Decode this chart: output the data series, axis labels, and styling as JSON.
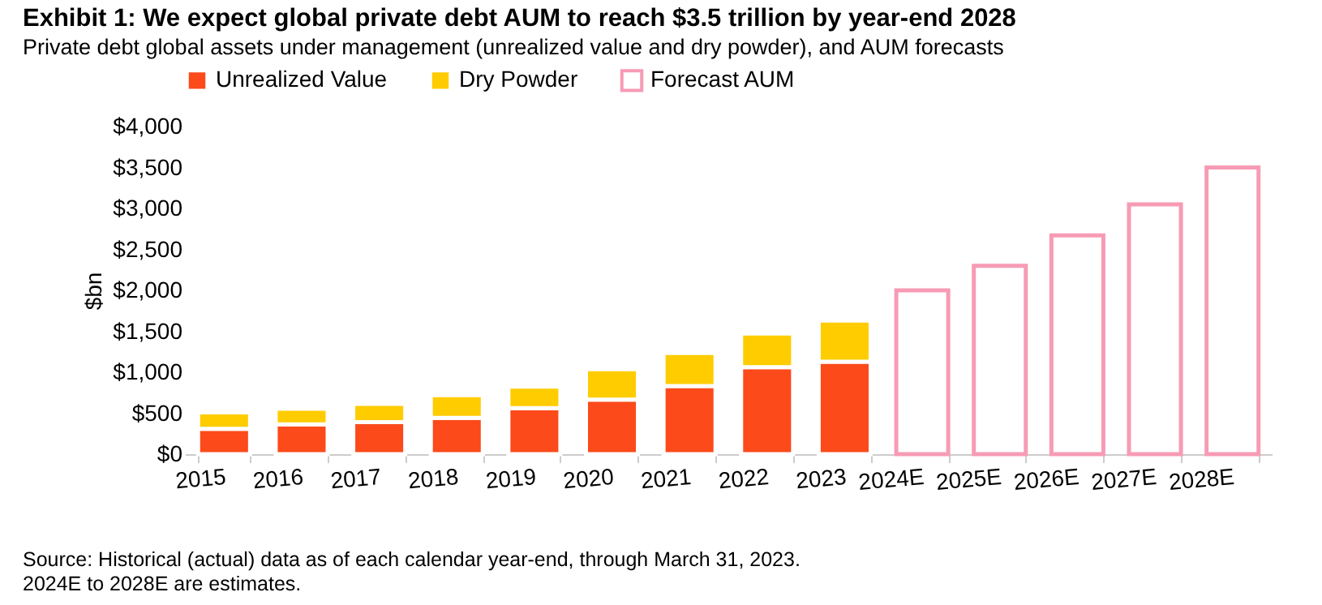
{
  "chart_data": {
    "type": "bar",
    "title": "Exhibit 1: We expect global private debt AUM to reach $3.5 trillion by year-end 2028",
    "subtitle": "Private debt global assets under management (unrealized value and dry powder), and AUM forecasts",
    "ylabel": "$bn",
    "categories": [
      "2015",
      "2016",
      "2017",
      "2018",
      "2019",
      "2020",
      "2021",
      "2022",
      "2023",
      "2024E",
      "2025E",
      "2026E",
      "2027E",
      "2028E"
    ],
    "stacked": true,
    "series": [
      {
        "name": "Unrealized Value",
        "color": "#fc4a1a",
        "values": [
          310,
          363,
          390,
          442,
          561,
          667,
          832,
          1063,
          1129,
          null,
          null,
          null,
          null,
          null
        ]
      },
      {
        "name": "Dry Powder",
        "color": "#ffcc00",
        "values": [
          200,
          192,
          224,
          278,
          264,
          370,
          403,
          410,
          501,
          null,
          null,
          null,
          null,
          null
        ]
      },
      {
        "name": "Forecast AUM",
        "color": "#f79bb5",
        "values": [
          null,
          null,
          null,
          null,
          null,
          null,
          null,
          null,
          null,
          2000,
          2300,
          2670,
          3050,
          3500
        ]
      }
    ],
    "ylim": [
      0,
      4000
    ],
    "yticks": [
      {
        "value": 0,
        "label": "$0"
      },
      {
        "value": 500,
        "label": "$500"
      },
      {
        "value": 1000,
        "label": "$1,000"
      },
      {
        "value": 1500,
        "label": "$1,500"
      },
      {
        "value": 2000,
        "label": "$2,000"
      },
      {
        "value": 2500,
        "label": "$2,500"
      },
      {
        "value": 3000,
        "label": "$3,000"
      },
      {
        "value": 3500,
        "label": "$3,500"
      },
      {
        "value": 4000,
        "label": "$4,000"
      }
    ],
    "grid": false,
    "legend": "top",
    "annotations": [
      "Source: Historical (actual) data as of each calendar year-end, through March 31, 2023.",
      "2024E to 2028E are estimates."
    ]
  }
}
